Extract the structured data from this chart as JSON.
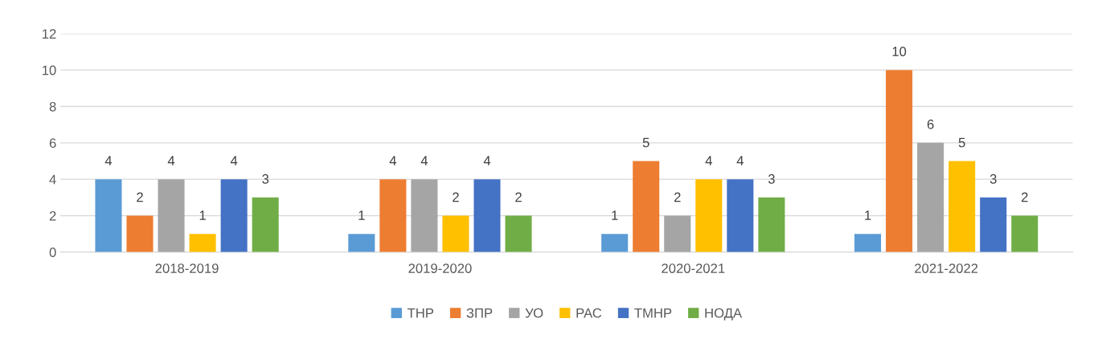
{
  "chart_data": {
    "type": "bar",
    "categories": [
      "2018-2019",
      "2019-2020",
      "2020-2021",
      "2021-2022"
    ],
    "series": [
      {
        "name": "ТНР",
        "color": "#5b9bd5",
        "values": [
          4,
          1,
          1,
          1
        ]
      },
      {
        "name": "ЗПР",
        "color": "#ed7d31",
        "values": [
          2,
          4,
          5,
          10
        ]
      },
      {
        "name": "УО",
        "color": "#a5a5a5",
        "values": [
          4,
          4,
          2,
          6
        ]
      },
      {
        "name": "РАС",
        "color": "#ffc000",
        "values": [
          1,
          2,
          4,
          5
        ]
      },
      {
        "name": "ТМНР",
        "color": "#4472c4",
        "values": [
          4,
          4,
          4,
          3
        ]
      },
      {
        "name": "НОДА",
        "color": "#70ad47",
        "values": [
          3,
          2,
          3,
          2
        ]
      }
    ],
    "ylim": [
      0,
      12
    ],
    "yticks": [
      0,
      2,
      4,
      6,
      8,
      10,
      12
    ],
    "grid": "y",
    "legend": "bottom",
    "data_labels": true
  }
}
